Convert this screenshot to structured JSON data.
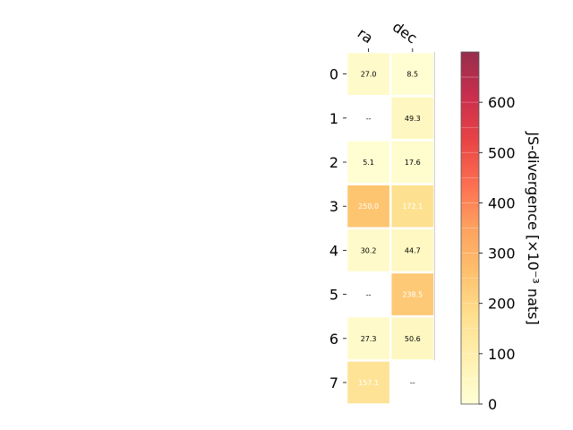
{
  "chart_data": {
    "type": "heatmap",
    "columns": [
      "ra",
      "dec"
    ],
    "rows": [
      "0",
      "1",
      "2",
      "3",
      "4",
      "5",
      "6",
      "7"
    ],
    "values": [
      [
        27.0,
        8.5
      ],
      [
        null,
        49.3
      ],
      [
        5.1,
        17.6
      ],
      [
        250.0,
        172.1
      ],
      [
        30.2,
        44.7
      ],
      [
        null,
        238.5
      ],
      [
        27.3,
        50.6
      ],
      [
        157.1,
        null
      ]
    ],
    "cell_labels": [
      [
        "27.0",
        "8.5"
      ],
      [
        "--",
        "49.3"
      ],
      [
        "5.1",
        "17.6"
      ],
      [
        "250.0",
        "172.1"
      ],
      [
        "30.2",
        "44.7"
      ],
      [
        "--",
        "238.5"
      ],
      [
        "27.3",
        "50.6"
      ],
      [
        "157.1",
        "--"
      ]
    ],
    "colormap": "YlOrRd",
    "vlim": [
      0,
      700
    ],
    "colorbar_ticks": [
      "0",
      "100",
      "200",
      "300",
      "400",
      "500",
      "600"
    ],
    "colorbar_label": "JS-divergence [×10⁻³ nats]",
    "missing_label": "--",
    "grid": false
  }
}
